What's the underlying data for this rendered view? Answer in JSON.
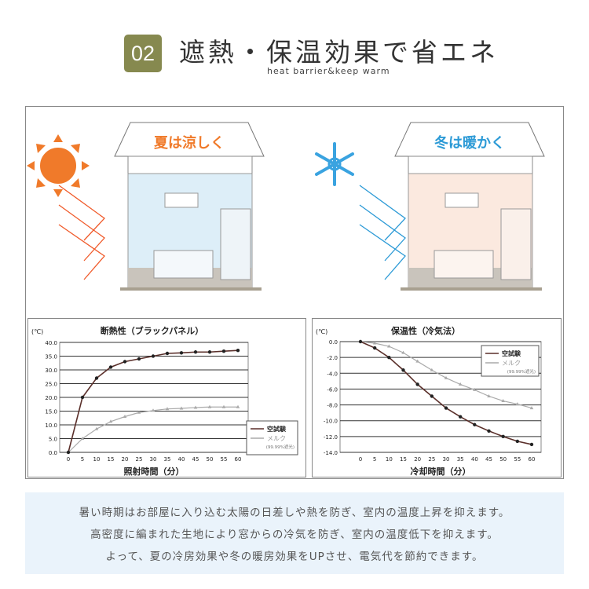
{
  "header": {
    "number": "02",
    "title": "遮熱・保温効果で省エネ",
    "subtitle": "heat barrier&keep warm"
  },
  "illustration": {
    "summary_label": "夏は涼しく",
    "winter_label": "冬は暖かく",
    "summer_color": "#f07a2a",
    "winter_color": "#2c9ad6",
    "summary_icon": "sun-icon",
    "winter_icon": "snowflake-icon"
  },
  "chart_data": [
    {
      "type": "line",
      "title": "断熱性（ブラックパネル）",
      "xlabel": "照射時間（分）",
      "ylabel": "(℃)",
      "x": [
        0,
        5,
        10,
        15,
        20,
        25,
        30,
        35,
        40,
        45,
        50,
        55,
        60
      ],
      "yticks": [
        "0.0",
        "5.0",
        "10.0",
        "15.0",
        "20.0",
        "25.0",
        "30.0",
        "35.0",
        "40.0"
      ],
      "ylim": [
        0,
        40
      ],
      "grid": true,
      "legend": "bottom-right",
      "series": [
        {
          "name": "空試験",
          "color": "#5a2f2a",
          "marker": "circle",
          "values": [
            0,
            20,
            27,
            31,
            33,
            34,
            35,
            36,
            36.2,
            36.5,
            36.5,
            36.8,
            37.1
          ]
        },
        {
          "name": "メルク",
          "note": "(99.99%遮光)",
          "color": "#aaaaaa",
          "marker": "triangle",
          "values": [
            0,
            5,
            8.5,
            11.2,
            13,
            14.5,
            15.2,
            15.8,
            16,
            16.3,
            16.5,
            16.5,
            16.5
          ]
        }
      ]
    },
    {
      "type": "line",
      "title": "保温性（冷気法）",
      "xlabel": "冷却時間（分）",
      "ylabel": "(℃)",
      "x": [
        0,
        5,
        10,
        15,
        20,
        25,
        30,
        35,
        40,
        45,
        50,
        55,
        60
      ],
      "yticks": [
        "-14.0",
        "-12.0",
        "-10.0",
        "-8.0",
        "-6.0",
        "-4.0",
        "-2.0",
        "0.0"
      ],
      "ylim": [
        -14,
        0
      ],
      "grid": true,
      "legend": "top-right",
      "series": [
        {
          "name": "空試験",
          "color": "#5a2f2a",
          "marker": "circle",
          "values": [
            0,
            -0.8,
            -2,
            -3.6,
            -5.4,
            -6.9,
            -8.4,
            -9.5,
            -10.5,
            -11.3,
            -12,
            -12.6,
            -13
          ]
        },
        {
          "name": "メルク",
          "note": "(99.99%遮光)",
          "color": "#aaaaaa",
          "marker": "triangle",
          "values": [
            0,
            -0.2,
            -0.6,
            -1.4,
            -2.5,
            -3.6,
            -4.6,
            -5.4,
            -6.1,
            -6.9,
            -7.5,
            -7.9,
            -8.4
          ]
        }
      ]
    }
  ],
  "description": [
    "暑い時期はお部屋に入り込む太陽の日差しや熱を防ぎ、室内の温度上昇を抑えます。",
    "高密度に編まれた生地により窓からの冷気を防ぎ、室内の温度低下を抑えます。",
    "よって、夏の冷房効果や冬の暖房効果をUPさせ、電気代を節約できます。"
  ]
}
